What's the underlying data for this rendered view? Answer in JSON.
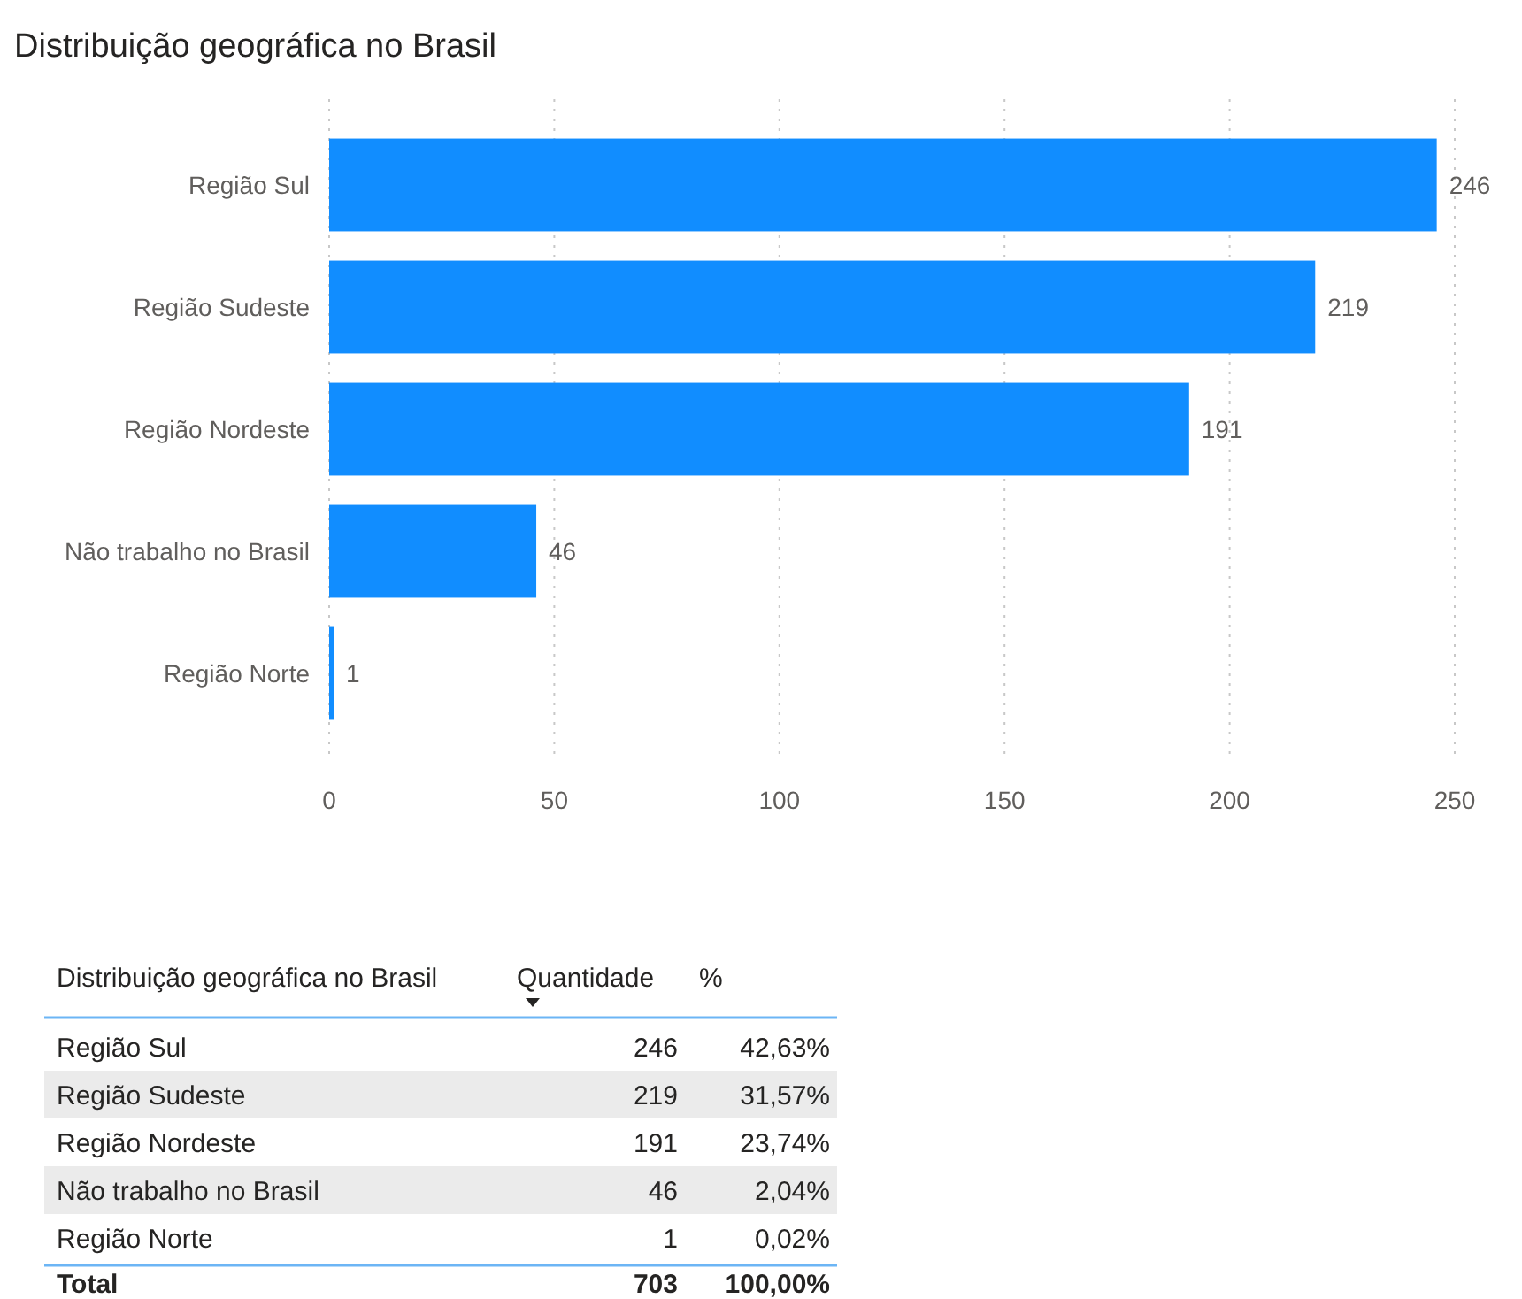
{
  "chart_data": [
    {
      "type": "bar",
      "orientation": "horizontal",
      "title": "Distribuição geográfica no Brasil",
      "categories": [
        "Região Sul",
        "Região Sudeste",
        "Região Nordeste",
        "Não trabalho no Brasil",
        "Região Norte"
      ],
      "values": [
        246,
        219,
        191,
        46,
        1
      ],
      "color": "#118dff",
      "xlim": [
        0,
        250
      ],
      "xticks": [
        0,
        50,
        100,
        150,
        200,
        250
      ],
      "grid": "x",
      "data_labels": true
    },
    {
      "type": "other",
      "xlabel": "Distribuição geográfica no Brasil",
      "categories": [
        "Região Sul",
        "Região Sudeste",
        "Região Nordeste",
        "Não trabalho no Brasil",
        "Região Norte"
      ],
      "data_labels": true,
      "series": [
        {
          "name": "Quantidade",
          "values": [
            246,
            219,
            191,
            46,
            1
          ]
        },
        {
          "name": "%",
          "values": [
            42.63,
            31.57,
            23.74,
            2.04,
            0.02
          ],
          "value_labels": [
            "42,63%",
            "31,57%",
            "23,74%",
            "2,04%",
            "0,02%"
          ]
        }
      ],
      "totals": [
        "703",
        "100,00%"
      ],
      "annotations": [
        "Total"
      ]
    }
  ]
}
